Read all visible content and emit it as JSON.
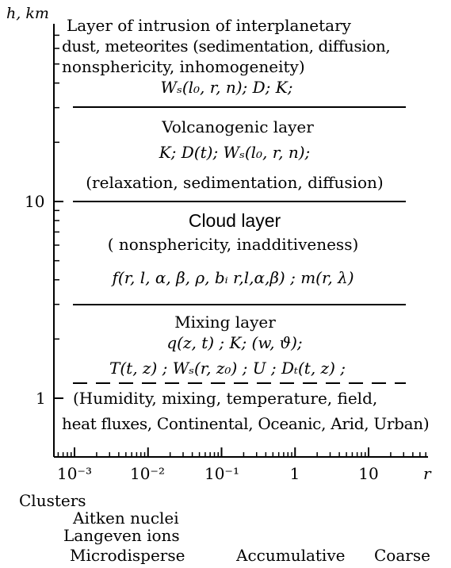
{
  "axes": {
    "y_label": "h, km",
    "y_ticks": [
      "10",
      "1"
    ],
    "x_label": "r",
    "x_ticks": [
      "10⁻³",
      "10⁻²",
      "10⁻¹",
      "1",
      "10"
    ],
    "y_scale": "log",
    "x_scale": "log"
  },
  "layers": {
    "intrusion": {
      "line1": "Layer of intrusion of interplanetary",
      "line2": "dust, meteorites (sedimentation, diffusion,",
      "line3": "nonsphericity, inhomogeneity)",
      "formula": "Wₛ(l₀, r, n); D; K;"
    },
    "volcanogenic": {
      "title": "Volcanogenic layer",
      "formula": "K; D(t); Wₛ(l₀, r, n);",
      "processes": "(relaxation, sedimentation, diffusion)"
    },
    "cloud": {
      "title": "Cloud layer",
      "properties": "( nonsphericity, inadditiveness)",
      "formula": "f(r, l, α, β, ρ, bᵢ r,l,α,β) ; m(r, λ)"
    },
    "mixing": {
      "title": "Mixing layer",
      "formula1": "q(z, t) ; K;  (w, ϑ);",
      "formula2": "T(t, z) ; Wₛ(r, z₀) ; U ; Dₜ(t, z) ;",
      "factors1": "(Humidity, mixing, temperature, field,",
      "factors2": "heat fluxes, Continental, Oceanic, Arid, Urban)"
    }
  },
  "particle_classes": {
    "clusters": "Clusters",
    "aitken": "Aitken nuclei",
    "langeven": "Langeven ions",
    "microdisperse": "Microdisperse",
    "accumulative": "Accumulative",
    "coarse": "Coarse"
  }
}
